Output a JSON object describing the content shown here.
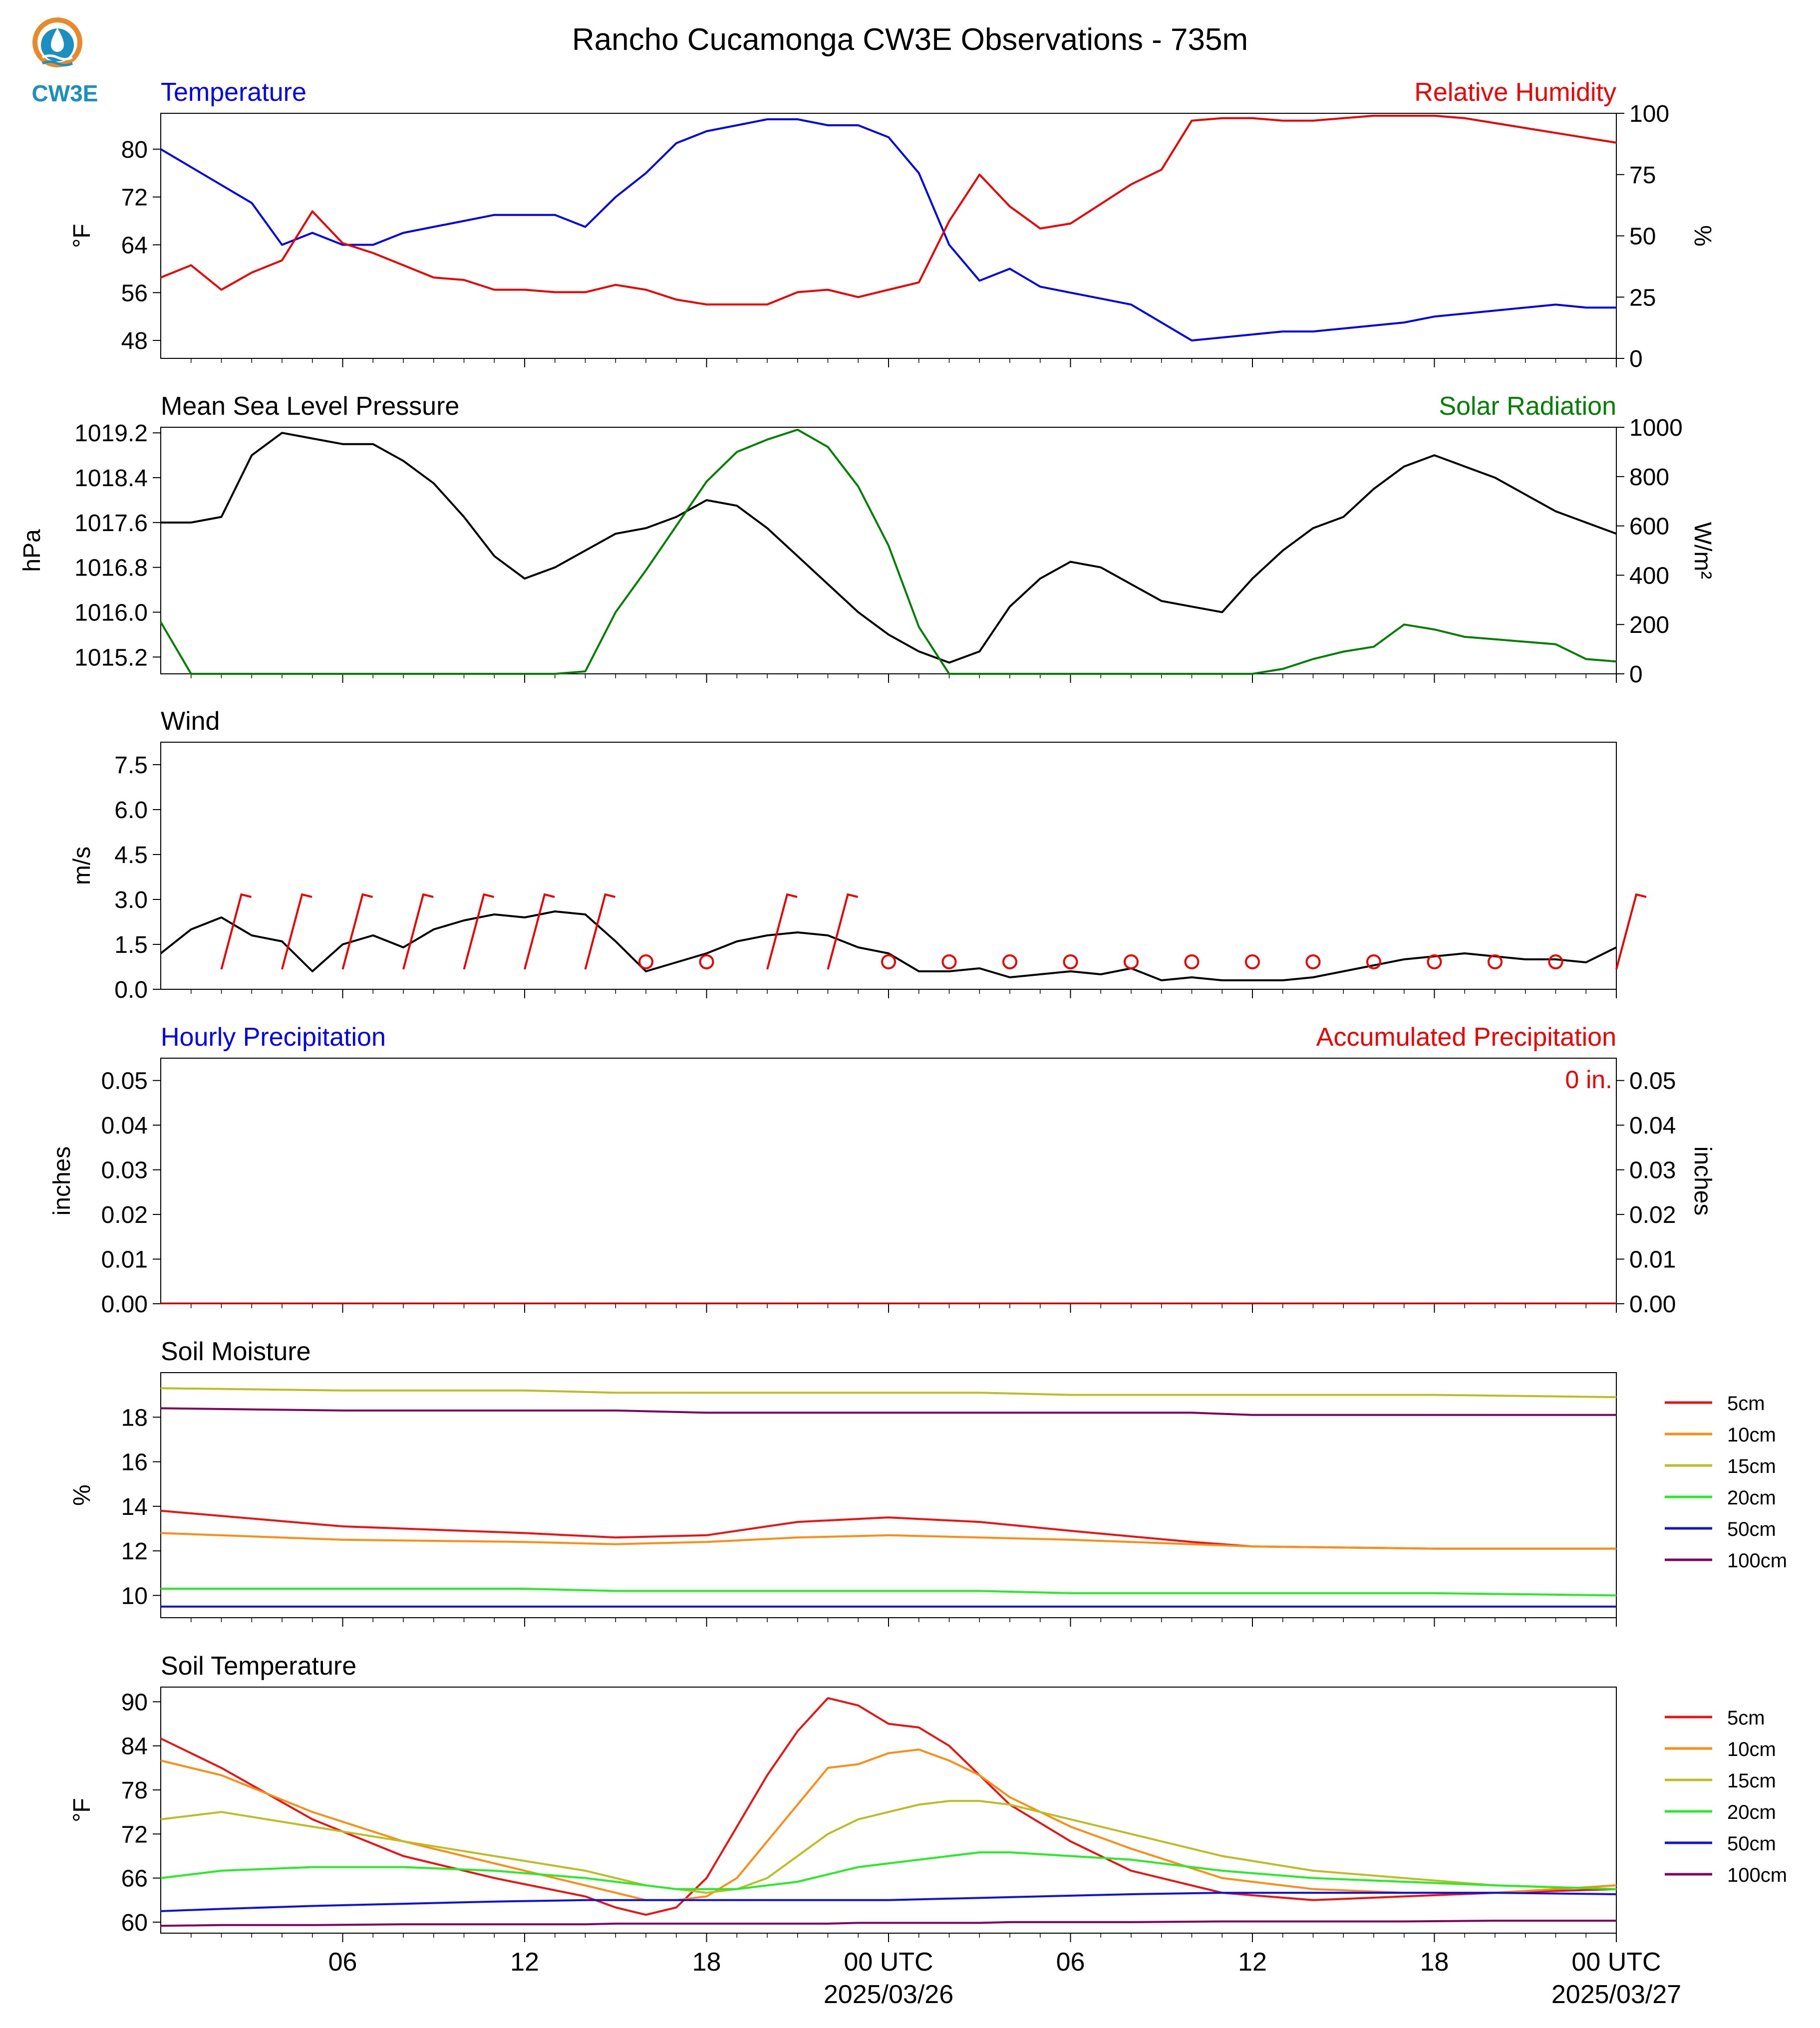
{
  "title": "Rancho Cucamonga CW3E Observations - 735m",
  "logo": {
    "text": "CW3E",
    "icon": "cw3e-logo-icon"
  },
  "colors": {
    "blue": "#0000ee",
    "red": "#ee0000",
    "green": "#007f00",
    "black": "#000000",
    "soil": {
      "5cm": "#ee1111",
      "10cm": "#ff8c11",
      "15cm": "#bcbd22",
      "20cm": "#22ee22",
      "50cm": "#1111dd",
      "100cm": "#800060"
    }
  },
  "time_axis": {
    "start": "2025-03-25 01 UTC",
    "end": "2025-03-27 01 UTC",
    "tick_labels": [
      "06",
      "12",
      "18",
      "00 UTC",
      "06",
      "12",
      "18",
      "00 UTC"
    ],
    "date_labels": [
      "2025/03/26",
      "2025/03/27"
    ]
  },
  "chart_data": [
    {
      "type": "line",
      "panel": "temperature-humidity",
      "left_title": "Temperature",
      "right_title": "Relative Humidity",
      "ylabel": "°F",
      "ylabel2": "%",
      "ylim": [
        45,
        86
      ],
      "ylim2": [
        0,
        100
      ],
      "yticks": [
        "80",
        "72",
        "64",
        "56",
        "48"
      ],
      "yticks2": [
        "100",
        "75",
        "50",
        "25",
        "0"
      ],
      "hours": [
        0,
        1,
        2,
        3,
        4,
        5,
        6,
        7,
        8,
        9,
        10,
        11,
        12,
        13,
        14,
        15,
        16,
        17,
        18,
        19,
        20,
        21,
        22,
        23,
        24,
        25,
        26,
        27,
        28,
        29,
        30,
        31,
        32,
        33,
        34,
        35,
        36,
        37,
        38,
        39,
        40,
        41,
        42,
        43,
        44,
        45,
        46,
        47,
        48
      ],
      "series": [
        {
          "name": "Temperature",
          "axis": "left",
          "color": "#0000ee",
          "values": [
            80,
            77,
            74,
            71,
            64,
            66,
            64,
            64,
            66,
            67,
            68,
            69,
            69,
            69,
            67,
            72,
            76,
            81,
            83,
            84,
            85,
            85,
            84,
            84,
            82,
            76,
            64,
            58,
            60,
            57,
            56,
            55,
            54,
            51,
            48,
            48.5,
            49,
            49.5,
            49.5,
            50,
            50.5,
            51,
            52,
            52.5,
            53,
            53.5,
            54,
            53.5,
            53.5
          ]
        },
        {
          "name": "Relative Humidity",
          "axis": "right",
          "color": "#ee0000",
          "values": [
            33,
            38,
            28,
            35,
            40,
            60,
            47,
            43,
            38,
            33,
            32,
            28,
            28,
            27,
            27,
            30,
            28,
            24,
            22,
            22,
            22,
            27,
            28,
            25,
            28,
            31,
            56,
            75,
            62,
            53,
            55,
            63,
            71,
            77,
            97,
            98,
            98,
            97,
            97,
            98,
            99,
            99,
            99,
            98,
            96,
            94,
            92,
            90,
            88
          ]
        }
      ]
    },
    {
      "type": "line",
      "panel": "pressure-solar",
      "left_title": "Mean Sea Level Pressure",
      "right_title": "Solar Radiation",
      "ylabel": "hPa",
      "ylabel2": "W/m²",
      "ylim": [
        14.9,
        19.3
      ],
      "ylim2": [
        0,
        1000
      ],
      "yticks": [
        "1019.2",
        "1018.4",
        "1017.6",
        "1016.8",
        "1016.0",
        "1015.2"
      ],
      "yticks2": [
        "1000",
        "800",
        "600",
        "400",
        "200",
        "0"
      ],
      "hours": [
        0,
        1,
        2,
        3,
        4,
        5,
        6,
        7,
        8,
        9,
        10,
        11,
        12,
        13,
        14,
        15,
        16,
        17,
        18,
        19,
        20,
        21,
        22,
        23,
        24,
        25,
        26,
        27,
        28,
        29,
        30,
        31,
        32,
        33,
        34,
        35,
        36,
        37,
        38,
        39,
        40,
        41,
        42,
        43,
        44,
        45,
        46,
        47,
        48
      ],
      "series": [
        {
          "name": "Pressure",
          "axis": "left",
          "color": "#000000",
          "values": [
            17.6,
            17.6,
            17.7,
            18.8,
            19.2,
            19.1,
            19.0,
            19.0,
            18.7,
            18.3,
            17.7,
            17.0,
            16.6,
            16.8,
            17.1,
            17.4,
            17.5,
            17.7,
            18.0,
            17.9,
            17.5,
            17.0,
            16.5,
            16.0,
            15.6,
            15.3,
            15.1,
            15.3,
            16.1,
            16.6,
            16.9,
            16.8,
            16.5,
            16.2,
            16.1,
            16.0,
            16.6,
            17.1,
            17.5,
            17.7,
            18.2,
            18.6,
            18.8,
            18.6,
            18.4,
            18.1,
            17.8,
            17.6,
            17.4
          ]
        },
        {
          "name": "Solar Radiation",
          "axis": "right",
          "color": "#007f00",
          "values": [
            210,
            0,
            0,
            0,
            0,
            0,
            0,
            0,
            0,
            0,
            0,
            0,
            0,
            0,
            10,
            250,
            420,
            600,
            780,
            900,
            950,
            990,
            920,
            760,
            520,
            190,
            0,
            0,
            0,
            0,
            0,
            0,
            0,
            0,
            0,
            0,
            0,
            20,
            60,
            90,
            110,
            200,
            180,
            150,
            140,
            130,
            120,
            60,
            50
          ]
        }
      ]
    },
    {
      "type": "line",
      "panel": "wind",
      "left_title": "Wind",
      "ylabel": "m/s",
      "ylim": [
        0,
        8.25
      ],
      "yticks": [
        "7.5",
        "6.0",
        "4.5",
        "3.0",
        "1.5",
        "0.0"
      ],
      "hours": [
        0,
        1,
        2,
        3,
        4,
        5,
        6,
        7,
        8,
        9,
        10,
        11,
        12,
        13,
        14,
        15,
        16,
        17,
        18,
        19,
        20,
        21,
        22,
        23,
        24,
        25,
        26,
        27,
        28,
        29,
        30,
        31,
        32,
        33,
        34,
        35,
        36,
        37,
        38,
        39,
        40,
        41,
        42,
        43,
        44,
        45,
        46,
        47,
        48
      ],
      "series": [
        {
          "name": "Wind speed",
          "color": "#000000",
          "values": [
            1.2,
            2.0,
            2.4,
            1.8,
            1.6,
            0.6,
            1.5,
            1.8,
            1.4,
            2.0,
            2.3,
            2.5,
            2.4,
            2.6,
            2.5,
            1.6,
            0.6,
            0.9,
            1.2,
            1.6,
            1.8,
            1.9,
            1.8,
            1.4,
            1.2,
            0.6,
            0.6,
            0.7,
            0.4,
            0.5,
            0.6,
            0.5,
            0.7,
            0.3,
            0.4,
            0.3,
            0.3,
            0.3,
            0.4,
            0.6,
            0.8,
            1.0,
            1.1,
            1.2,
            1.1,
            1.0,
            1.0,
            0.9,
            1.4
          ]
        }
      ]
    },
    {
      "type": "line",
      "panel": "precipitation",
      "left_title": "Hourly Precipitation",
      "right_title": "Accumulated Precipitation",
      "ylabel": "inches",
      "ylabel2": "inches",
      "ylim": [
        0,
        0.055
      ],
      "yticks": [
        "0.05",
        "0.04",
        "0.03",
        "0.02",
        "0.01",
        "0.00"
      ],
      "yticks2": [
        "0.05",
        "0.04",
        "0.03",
        "0.02",
        "0.01",
        "0.00"
      ],
      "annotation": "0 in.",
      "series": [
        {
          "name": "Hourly Precipitation",
          "color": "#0000ee",
          "values": [
            0,
            0
          ]
        },
        {
          "name": "Accumulated Precipitation",
          "color": "#ee0000",
          "values": [
            0,
            0
          ]
        }
      ]
    },
    {
      "type": "line",
      "panel": "soil-moisture",
      "left_title": "Soil Moisture",
      "ylabel": "%",
      "ylim": [
        9.0,
        20.0
      ],
      "yticks": [
        "18",
        "16",
        "14",
        "12",
        "10"
      ],
      "legend": [
        "5cm",
        "10cm",
        "15cm",
        "20cm",
        "50cm",
        "100cm"
      ],
      "hours": [
        0,
        6,
        12,
        15,
        18,
        21,
        24,
        27,
        30,
        34,
        36,
        42,
        48
      ],
      "series": [
        {
          "name": "5cm",
          "color": "#ee1111",
          "values": [
            13.8,
            13.1,
            12.8,
            12.6,
            12.7,
            13.3,
            13.5,
            13.3,
            12.9,
            12.4,
            12.2,
            12.1,
            12.1
          ]
        },
        {
          "name": "10cm",
          "color": "#ff8c11",
          "values": [
            12.8,
            12.5,
            12.4,
            12.3,
            12.4,
            12.6,
            12.7,
            12.6,
            12.5,
            12.3,
            12.2,
            12.1,
            12.1
          ]
        },
        {
          "name": "15cm",
          "color": "#bcbd22",
          "values": [
            19.3,
            19.2,
            19.2,
            19.1,
            19.1,
            19.1,
            19.1,
            19.1,
            19.0,
            19.0,
            19.0,
            19.0,
            18.9
          ]
        },
        {
          "name": "20cm",
          "color": "#22ee22",
          "values": [
            10.3,
            10.3,
            10.3,
            10.2,
            10.2,
            10.2,
            10.2,
            10.2,
            10.1,
            10.1,
            10.1,
            10.1,
            10.0
          ]
        },
        {
          "name": "50cm",
          "color": "#1111dd",
          "values": [
            9.5,
            9.5,
            9.5,
            9.5,
            9.5,
            9.5,
            9.5,
            9.5,
            9.5,
            9.5,
            9.5,
            9.5,
            9.5
          ]
        },
        {
          "name": "100cm",
          "color": "#800060",
          "values": [
            18.4,
            18.3,
            18.3,
            18.3,
            18.2,
            18.2,
            18.2,
            18.2,
            18.2,
            18.2,
            18.1,
            18.1,
            18.1
          ]
        }
      ]
    },
    {
      "type": "line",
      "panel": "soil-temperature",
      "left_title": "Soil Temperature",
      "ylabel": "°F",
      "ylim": [
        58.5,
        92
      ],
      "yticks": [
        "90",
        "84",
        "78",
        "72",
        "66",
        "60"
      ],
      "legend": [
        "5cm",
        "10cm",
        "15cm",
        "20cm",
        "50cm",
        "100cm"
      ],
      "hours": [
        0,
        2,
        5,
        8,
        11,
        14,
        15,
        16,
        17,
        18,
        19,
        20,
        21,
        22,
        23,
        24,
        25,
        26,
        27,
        28,
        30,
        32,
        35,
        38,
        41,
        44,
        48
      ],
      "series": [
        {
          "name": "5cm",
          "color": "#ee1111",
          "values": [
            85,
            81,
            74,
            69,
            66,
            63.5,
            62,
            61,
            62,
            66,
            73,
            80,
            86,
            90.5,
            89.5,
            87,
            86.5,
            84,
            80,
            76,
            71,
            67,
            64,
            63,
            63.5,
            64,
            64.5
          ]
        },
        {
          "name": "10cm",
          "color": "#ff8c11",
          "values": [
            82,
            80,
            75,
            71,
            68,
            65,
            64,
            63,
            63,
            63.5,
            66,
            71,
            76,
            81,
            81.5,
            83,
            83.5,
            82,
            80,
            77,
            73,
            70,
            66,
            64.5,
            64,
            64,
            65
          ]
        },
        {
          "name": "15cm",
          "color": "#bcbd22",
          "values": [
            74,
            75,
            73,
            71,
            69,
            67,
            66,
            65,
            64.5,
            64,
            64.5,
            66,
            69,
            72,
            74,
            75,
            76,
            76.5,
            76.5,
            76,
            74,
            72,
            69,
            67,
            66,
            65,
            64.5
          ]
        },
        {
          "name": "20cm",
          "color": "#22ee22",
          "values": [
            66,
            67,
            67.5,
            67.5,
            67,
            66,
            65.5,
            65,
            64.5,
            64.5,
            64.5,
            65,
            65.5,
            66.5,
            67.5,
            68,
            68.5,
            69,
            69.5,
            69.5,
            69,
            68.5,
            67,
            66,
            65.5,
            65,
            64.5
          ]
        },
        {
          "name": "50cm",
          "color": "#1111dd",
          "values": [
            61.5,
            61.8,
            62.2,
            62.5,
            62.8,
            63,
            63,
            63,
            63,
            63,
            63,
            63,
            63,
            63,
            63,
            63,
            63.1,
            63.2,
            63.3,
            63.4,
            63.6,
            63.8,
            64,
            64,
            64,
            64,
            63.8
          ]
        },
        {
          "name": "100cm",
          "color": "#800060",
          "values": [
            59.5,
            59.6,
            59.6,
            59.7,
            59.7,
            59.7,
            59.8,
            59.8,
            59.8,
            59.8,
            59.8,
            59.8,
            59.8,
            59.8,
            59.9,
            59.9,
            59.9,
            59.9,
            59.9,
            60,
            60,
            60,
            60.1,
            60.1,
            60.1,
            60.2,
            60.2
          ]
        }
      ]
    }
  ]
}
